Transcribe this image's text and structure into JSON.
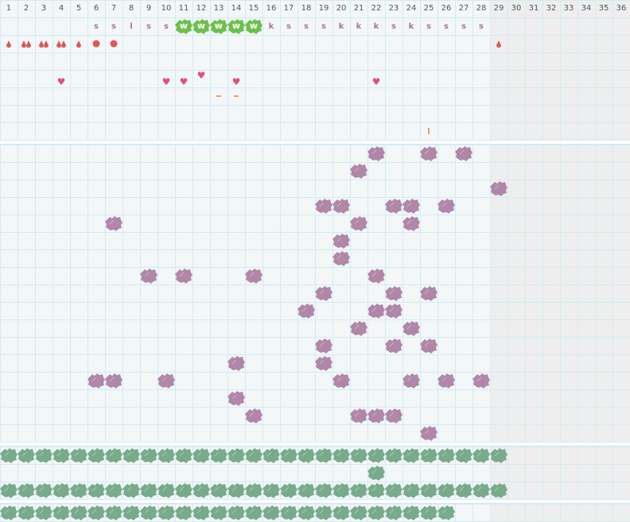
{
  "days": [
    "1",
    "2",
    "3",
    "4",
    "5",
    "6",
    "7",
    "8",
    "9",
    "10",
    "11",
    "12",
    "13",
    "14",
    "15",
    "16",
    "17",
    "18",
    "19",
    "20",
    "21",
    "22",
    "23",
    "24",
    "25",
    "26",
    "27",
    "28",
    "29",
    "30",
    "31",
    "32",
    "33",
    "34",
    "35",
    "36"
  ],
  "colors": {
    "cell": "#f3f7f8",
    "grid": "#d4eaf3",
    "inactive": "#eeeeee",
    "letter": "#a5779c",
    "drop": "#e05555",
    "heart": "#e0507a",
    "dash": "#f39a6a",
    "wblob": "#6cc04a",
    "purple_blob": "#b087a8",
    "green_blob": "#78ab8a"
  },
  "active_days": 28,
  "top_section": {
    "letters": [
      {
        "day": 6,
        "text": "s"
      },
      {
        "day": 7,
        "text": "s"
      },
      {
        "day": 8,
        "text": "l"
      },
      {
        "day": 9,
        "text": "s"
      },
      {
        "day": 10,
        "text": "s"
      },
      {
        "day": 11,
        "text": "w",
        "icon": "green-blob"
      },
      {
        "day": 12,
        "text": "w",
        "icon": "green-blob"
      },
      {
        "day": 13,
        "text": "w",
        "icon": "green-blob"
      },
      {
        "day": 14,
        "text": "w",
        "icon": "green-blob"
      },
      {
        "day": 15,
        "text": "w",
        "icon": "green-blob"
      },
      {
        "day": 16,
        "text": "k"
      },
      {
        "day": 17,
        "text": "s"
      },
      {
        "day": 18,
        "text": "s"
      },
      {
        "day": 19,
        "text": "s"
      },
      {
        "day": 20,
        "text": "k"
      },
      {
        "day": 21,
        "text": "k"
      },
      {
        "day": 22,
        "text": "k"
      },
      {
        "day": 23,
        "text": "s"
      },
      {
        "day": 24,
        "text": "k"
      },
      {
        "day": 25,
        "text": "s"
      },
      {
        "day": 26,
        "text": "s"
      },
      {
        "day": 27,
        "text": "s"
      },
      {
        "day": 28,
        "text": "s"
      }
    ],
    "flow": [
      {
        "day": 1,
        "icon": "drop-icon",
        "count": 1
      },
      {
        "day": 2,
        "icon": "drop-icon",
        "count": 2
      },
      {
        "day": 3,
        "icon": "drop-icon",
        "count": 2
      },
      {
        "day": 4,
        "icon": "drop-icon",
        "count": 2
      },
      {
        "day": 5,
        "icon": "drop-icon",
        "count": 1
      },
      {
        "day": 6,
        "icon": "dot-icon",
        "count": 1
      },
      {
        "day": 7,
        "icon": "dot-icon",
        "count": 1
      },
      {
        "day": 29,
        "icon": "drop-icon",
        "count": 1
      }
    ],
    "hearts": [
      {
        "day": 4
      },
      {
        "day": 10
      },
      {
        "day": 11
      },
      {
        "day": 12,
        "raised": true
      },
      {
        "day": 14
      },
      {
        "day": 22
      }
    ],
    "dashes": [
      {
        "day": 13
      },
      {
        "day": 14
      }
    ],
    "ticks": [
      {
        "day": 25
      }
    ]
  },
  "purple_rows": [
    [
      22,
      25,
      27
    ],
    [
      21
    ],
    [
      29
    ],
    [
      19,
      20,
      23,
      24,
      26
    ],
    [
      7,
      21,
      24
    ],
    [
      20
    ],
    [
      20
    ],
    [
      9,
      11,
      15,
      22
    ],
    [
      19,
      23,
      25
    ],
    [
      18,
      22,
      23
    ],
    [
      21,
      24
    ],
    [
      19,
      23,
      25
    ],
    [
      14,
      19
    ],
    [
      6,
      7,
      10,
      20,
      24,
      26,
      28
    ],
    [
      14
    ],
    [
      15,
      21,
      22,
      23
    ],
    [
      25
    ]
  ],
  "green_rows": [
    {
      "days_from": 1,
      "days_to": 29
    },
    {
      "days": [
        22
      ]
    },
    {
      "days_from": 1,
      "days_to": 29
    },
    {
      "days_from": 1,
      "days_to": 26
    }
  ]
}
